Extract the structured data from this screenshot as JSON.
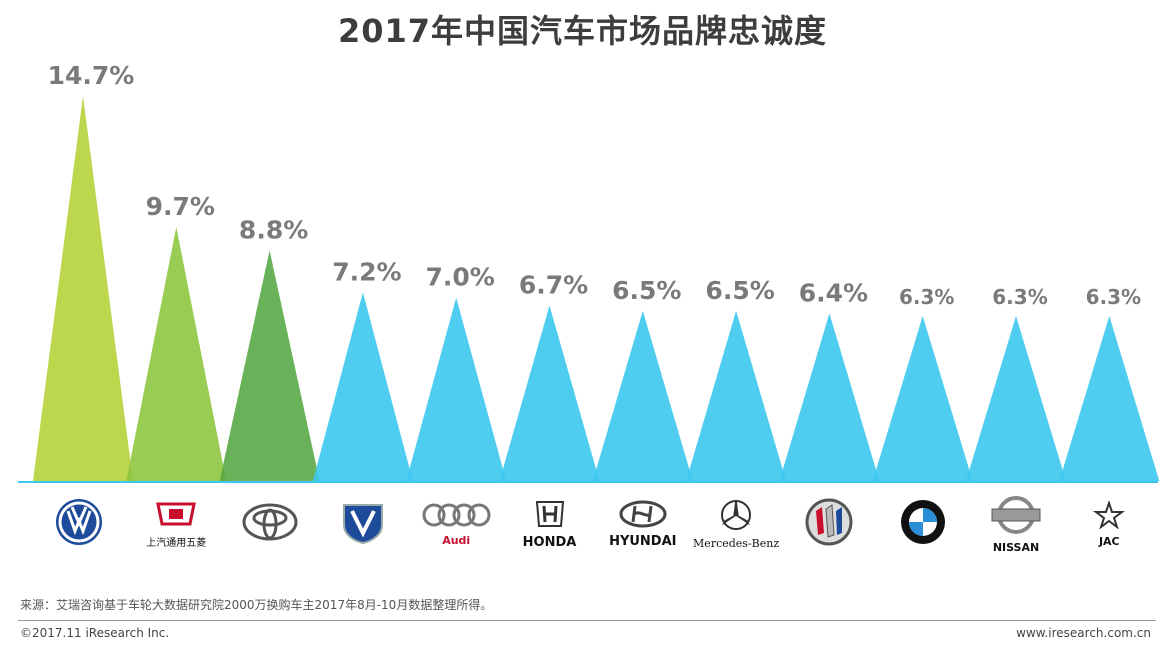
{
  "title": "2017年中国汽车市场品牌忠诚度",
  "chart_data": {
    "type": "bar",
    "title": "2017年中国汽车市场品牌忠诚度",
    "categories": [
      "Volkswagen",
      "上汽通用五菱",
      "Toyota",
      "Changan",
      "Audi",
      "HONDA",
      "HYUNDAI",
      "Mercedes-Benz",
      "Buick",
      "BMW",
      "NISSAN",
      "JAC"
    ],
    "values": [
      14.7,
      9.7,
      8.8,
      7.2,
      7.0,
      6.7,
      6.5,
      6.5,
      6.4,
      6.3,
      6.3,
      6.3
    ],
    "value_labels": [
      "14.7%",
      "9.7%",
      "8.8%",
      "7.2%",
      "7.0%",
      "6.7%",
      "6.5%",
      "6.5%",
      "6.4%",
      "6.3%",
      "6.3%",
      "6.3%"
    ],
    "ylim": [
      0,
      16
    ],
    "colors": [
      "#b5d33a",
      "#8ec63f",
      "#5aaa47",
      "#3cc8ee",
      "#3cc8ee",
      "#3cc8ee",
      "#3cc8ee",
      "#3cc8ee",
      "#3cc8ee",
      "#3cc8ee",
      "#3cc8ee",
      "#3cc8ee"
    ],
    "label_color": "#7a7a7a"
  },
  "logos": [
    {
      "icon": "volkswagen-logo-icon",
      "label": ""
    },
    {
      "icon": "sgmw-logo-icon",
      "label": "上汽通用五菱"
    },
    {
      "icon": "toyota-logo-icon",
      "label": ""
    },
    {
      "icon": "changan-logo-icon",
      "label": ""
    },
    {
      "icon": "audi-logo-icon",
      "label": "Audi"
    },
    {
      "icon": "honda-logo-icon",
      "label": "HONDA"
    },
    {
      "icon": "hyundai-logo-icon",
      "label": "HYUNDAI"
    },
    {
      "icon": "mercedes-benz-logo-icon",
      "label": "Mercedes-Benz"
    },
    {
      "icon": "buick-logo-icon",
      "label": ""
    },
    {
      "icon": "bmw-logo-icon",
      "label": ""
    },
    {
      "icon": "nissan-logo-icon",
      "label": "NISSAN"
    },
    {
      "icon": "jac-logo-icon",
      "label": "JAC"
    }
  ],
  "footer": {
    "source": "来源：艾瑞咨询基于车轮大数据研究院2000万换购车主2017年8月-10月数据整理所得。",
    "copyright": "©2017.11 iResearch Inc.",
    "website": "www.iresearch.com.cn"
  }
}
